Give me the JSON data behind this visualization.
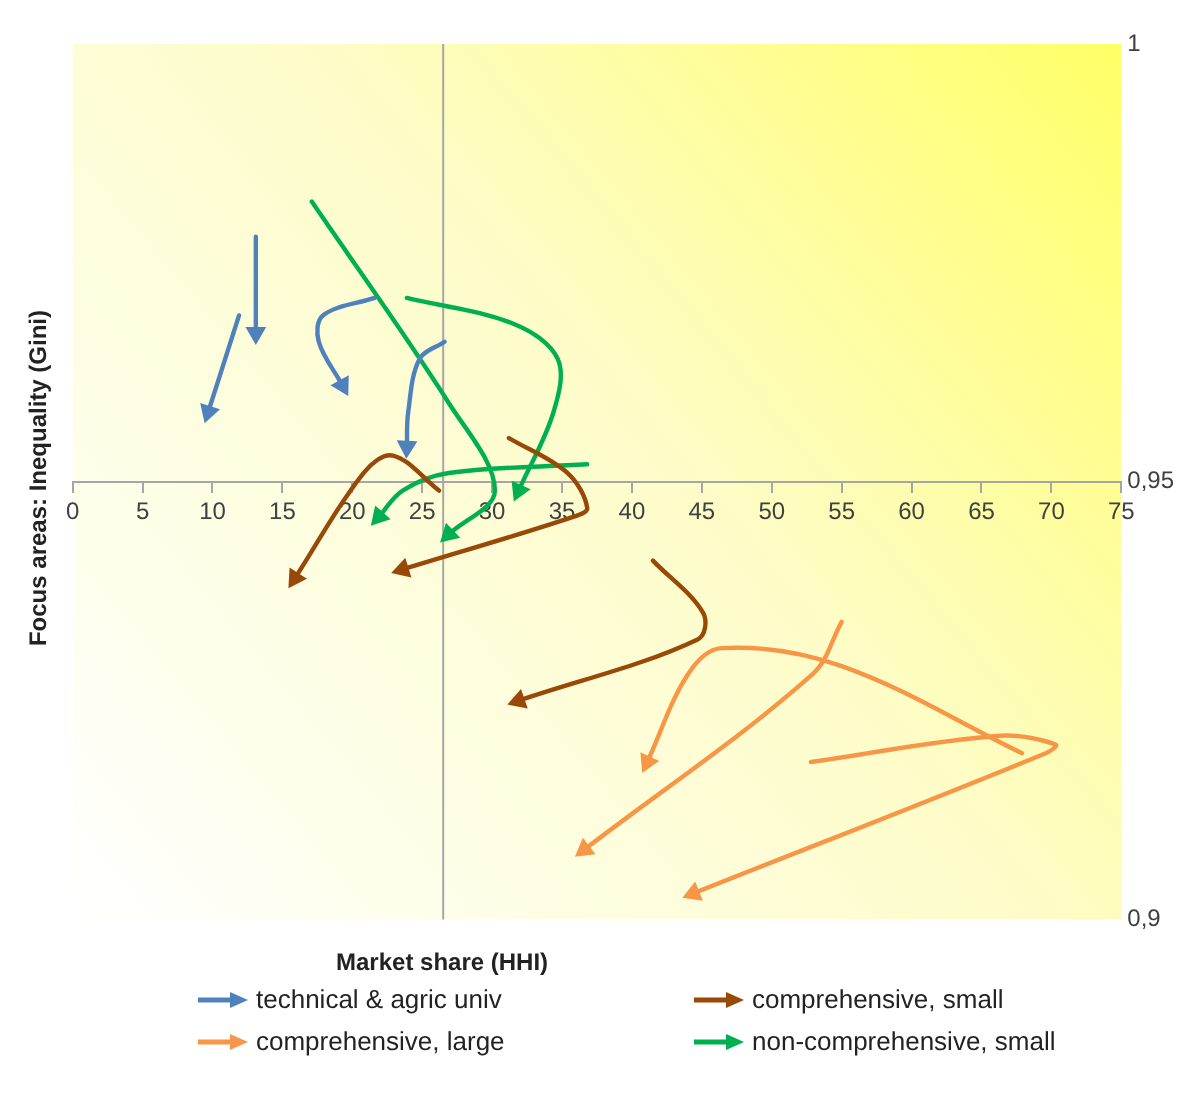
{
  "chart_data": {
    "type": "line",
    "xlabel": "Market share (HHI)",
    "ylabel": "Focus areas: Inequality (Gini)",
    "xlim": [
      0,
      75
    ],
    "xticks": [
      0,
      5,
      10,
      15,
      20,
      25,
      30,
      35,
      40,
      45,
      50,
      55,
      60,
      65,
      70,
      75
    ],
    "ylim": [
      0.9,
      1
    ],
    "yticks": [
      {
        "value": 0.9,
        "label": "0,9"
      },
      {
        "value": 0.95,
        "label": "0,95"
      },
      {
        "value": 1,
        "label": "1"
      }
    ],
    "grid": false,
    "legend": "bottom",
    "ref_lines": [
      {
        "axis": "x",
        "value": 26.5,
        "color": "#a6a6a6"
      }
    ],
    "series": [
      {
        "name": "technical & agric univ",
        "color": "#4f81bd",
        "x": [
          11.9,
          9.7
        ],
        "values": [
          0.969,
          0.958
        ]
      },
      {
        "color": "#4f81bd",
        "x": [
          13.1,
          13.1
        ],
        "values": [
          0.978,
          0.967
        ]
      },
      {
        "color": "#4f81bd",
        "x": [
          21.6,
          17.9,
          17.6,
          19.3
        ],
        "values": [
          0.971,
          0.969,
          0.966,
          0.961
        ]
      },
      {
        "color": "#4f81bd",
        "x": [
          26.6,
          24.8,
          24.0,
          23.9
        ],
        "values": [
          0.966,
          0.964,
          0.958,
          0.954
        ]
      },
      {
        "name": "comprehensive, small",
        "color": "#984807",
        "x": [
          26.2,
          22.9,
          20.8,
          15.9
        ],
        "values": [
          0.949,
          0.953,
          0.951,
          0.939
        ]
      },
      {
        "color": "#984807",
        "x": [
          31.2,
          35.4,
          36.8,
          35.8,
          23.6
        ],
        "values": [
          0.955,
          0.951,
          0.947,
          0.946,
          0.94
        ]
      },
      {
        "color": "#984807",
        "x": [
          41.5,
          45.1,
          44.7,
          31.9
        ],
        "values": [
          0.941,
          0.935,
          0.932,
          0.925
        ]
      },
      {
        "name": "comprehensive, large",
        "color": "#f79646",
        "x": [
          55.0,
          52.9,
          36.6
        ],
        "values": [
          0.934,
          0.928,
          0.908
        ]
      },
      {
        "color": "#f79646",
        "x": [
          67.9,
          54.9,
          46.4,
          44.0,
          41.1
        ],
        "values": [
          0.919,
          0.929,
          0.931,
          0.928,
          0.918
        ]
      },
      {
        "color": "#f79646",
        "x": [
          52.8,
          66.3,
          70.3,
          69.6,
          44.4
        ],
        "values": [
          0.918,
          0.921,
          0.92,
          0.919,
          0.903
        ]
      },
      {
        "name": "non-comprehensive, small",
        "color": "#00b050",
        "x": [
          17.1,
          26.9,
          30.2,
          26.9
        ],
        "values": [
          0.982,
          0.959,
          0.949,
          0.944
        ]
      },
      {
        "color": "#00b050",
        "x": [
          23.9,
          31.6,
          34.7,
          34.4,
          31.9
        ],
        "values": [
          0.971,
          0.968,
          0.964,
          0.958,
          0.949
        ]
      },
      {
        "color": "#00b050",
        "x": [
          36.8,
          26.9,
          23.6,
          21.9
        ],
        "values": [
          0.952,
          0.951,
          0.949,
          0.946
        ]
      }
    ]
  }
}
